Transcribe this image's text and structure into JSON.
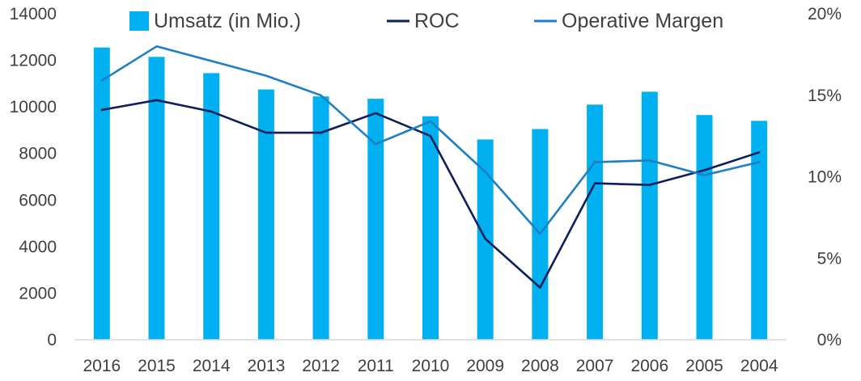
{
  "chart_data": {
    "type": "bar",
    "categories": [
      "2016",
      "2015",
      "2014",
      "2013",
      "2012",
      "2011",
      "2010",
      "2009",
      "2008",
      "2007",
      "2006",
      "2005",
      "2004"
    ],
    "series": [
      {
        "name": "Umsatz (in Mio.)",
        "type": "bar",
        "axis": "left",
        "color": "#00b0f0",
        "values": [
          12550,
          12150,
          11450,
          10750,
          10450,
          10350,
          9600,
          8600,
          9050,
          10100,
          10650,
          9650,
          9400
        ]
      },
      {
        "name": "ROC",
        "type": "line",
        "axis": "right",
        "color": "#0d1f5c",
        "values": [
          14.1,
          14.7,
          14.0,
          12.7,
          12.7,
          13.9,
          12.5,
          6.2,
          3.2,
          9.6,
          9.5,
          10.4,
          11.5
        ]
      },
      {
        "name": "Operative Margen",
        "type": "line",
        "axis": "right",
        "color": "#1f7fc4",
        "values": [
          15.9,
          18.0,
          17.1,
          16.2,
          15.0,
          12.0,
          13.4,
          10.3,
          6.5,
          10.9,
          11.0,
          10.1,
          10.9
        ]
      }
    ],
    "left_axis": {
      "min": 0,
      "max": 14000,
      "ticks": [
        "0",
        "2000",
        "4000",
        "6000",
        "8000",
        "10000",
        "12000",
        "14000"
      ]
    },
    "right_axis": {
      "min": 0,
      "max": 20,
      "ticks": [
        "0%",
        "5%",
        "10%",
        "15%",
        "20%"
      ]
    },
    "grid": false,
    "legend": "top"
  }
}
